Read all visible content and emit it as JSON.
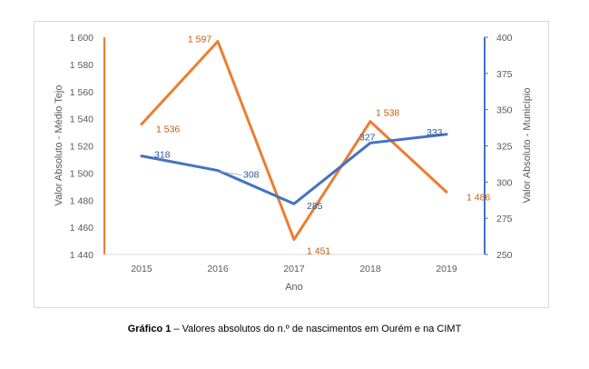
{
  "chart_data": {
    "type": "line",
    "categories": [
      "2015",
      "2016",
      "2017",
      "2018",
      "2019"
    ],
    "xlabel": "Ano",
    "y_left": {
      "label": "Valor Absoluto - Médio Tejo",
      "range": [
        1440,
        1600
      ],
      "ticks": [
        "1 440",
        "1 460",
        "1 480",
        "1 500",
        "1 520",
        "1 540",
        "1 560",
        "1 580",
        "1 600"
      ],
      "color": "#ED7D31"
    },
    "y_right": {
      "label": "Valor Absoluto - Município",
      "range": [
        250,
        400
      ],
      "ticks": [
        "250",
        "275",
        "300",
        "325",
        "350",
        "375",
        "400"
      ],
      "color": "#4472C4"
    },
    "series": [
      {
        "axis": "left",
        "color": "#ED7D31",
        "values": [
          1536,
          1597,
          1451,
          1538,
          1486
        ],
        "labels": [
          "1 536",
          "1 597",
          "1 451",
          "1 538",
          "1 486"
        ]
      },
      {
        "axis": "right",
        "color": "#4472C4",
        "values": [
          318,
          308,
          285,
          327,
          333
        ],
        "labels": [
          "318",
          "308",
          "285",
          "327",
          "333"
        ]
      }
    ],
    "grid": false,
    "legend": "none"
  },
  "caption": {
    "bold": "Gráfico 1",
    "text": " – Valores absolutos do n.º de nascimentos em Ourém e na CIMT"
  }
}
